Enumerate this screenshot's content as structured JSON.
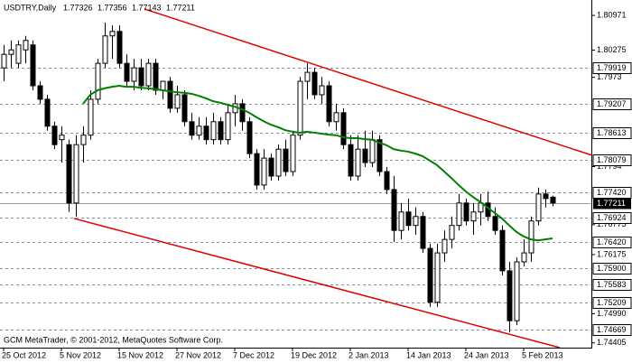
{
  "chart_data": {
    "type": "candlestick",
    "title": "USDTRY,Daily",
    "footer": "GCM MetaTrader, © 2001-2012, MetaQuotes Software Corp.",
    "categories": [
      "25 Oct 2012",
      null,
      null,
      null,
      null,
      null,
      null,
      null,
      "5 Nov 2012",
      null,
      null,
      null,
      null,
      null,
      null,
      null,
      "15 Nov 2012",
      null,
      null,
      null,
      null,
      null,
      null,
      null,
      "27 Nov 2012",
      null,
      null,
      null,
      null,
      null,
      null,
      null,
      "7 Dec 2012",
      null,
      null,
      null,
      null,
      null,
      null,
      null,
      "19 Dec 2012",
      null,
      null,
      null,
      null,
      null,
      null,
      null,
      "2 Jan 2013",
      null,
      null,
      null,
      null,
      null,
      null,
      null,
      "14 Jan 2013",
      null,
      null,
      null,
      null,
      null,
      null,
      null,
      "24 Jan 2013",
      null,
      null,
      null,
      null,
      null,
      null,
      null,
      "5 Feb 2013",
      null,
      null,
      null,
      null
    ],
    "open": [
      1.7992,
      1.8019,
      1.8001,
      1.8028,
      1.8038,
      1.7956,
      1.7929,
      1.7875,
      1.7848,
      1.7838,
      1.7721,
      1.7838,
      1.7857,
      1.7929,
      1.8001,
      1.8056,
      1.8065,
      1.8001,
      1.7965,
      1.7992,
      1.7956,
      1.8001,
      1.7947,
      1.7965,
      1.7911,
      1.7938,
      1.7884,
      1.7857,
      1.7875,
      1.7848,
      1.7884,
      1.7848,
      1.7902,
      1.792,
      1.7884,
      1.782,
      1.7757,
      1.7811,
      1.7775,
      1.7829,
      1.7784,
      1.7857,
      1.7965,
      1.7983,
      1.7938,
      1.7956,
      1.7884,
      1.7902,
      1.7838,
      1.7775,
      1.7829,
      1.7802,
      1.7848,
      1.7784,
      1.7748,
      1.7666,
      1.7703,
      1.7676,
      1.7694,
      1.763,
      1.7522,
      1.7621,
      1.7648,
      1.7676,
      1.7721,
      1.7685,
      1.7703,
      1.7721,
      1.7694,
      1.7666,
      1.7585,
      1.7485,
      1.7603,
      1.7621,
      1.7685,
      1.7739,
      1.77326
    ],
    "high": [
      1.8038,
      1.8047,
      1.8047,
      1.8056,
      1.8047,
      1.7965,
      1.7938,
      1.7884,
      1.7875,
      1.7848,
      1.7857,
      1.7875,
      1.7947,
      1.801,
      1.8083,
      1.8077,
      1.8077,
      1.8019,
      1.801,
      1.801,
      1.801,
      1.801,
      1.7965,
      1.7974,
      1.7956,
      1.7947,
      1.7902,
      1.7893,
      1.7893,
      1.7902,
      1.7893,
      1.792,
      1.7938,
      1.7929,
      1.7893,
      1.7829,
      1.7829,
      1.782,
      1.7838,
      1.7848,
      1.7866,
      1.7974,
      1.8001,
      1.7992,
      1.7974,
      1.7965,
      1.792,
      1.7911,
      1.7857,
      1.7857,
      1.7866,
      1.7866,
      1.7857,
      1.7793,
      1.7775,
      1.7721,
      1.773,
      1.7712,
      1.7703,
      1.7639,
      1.7639,
      1.7666,
      1.7694,
      1.7739,
      1.773,
      1.7721,
      1.7739,
      1.7744,
      1.7712,
      1.7676,
      1.7603,
      1.7612,
      1.7648,
      1.7694,
      1.7752,
      1.7748,
      1.77356
    ],
    "low": [
      1.7965,
      1.7992,
      1.7992,
      1.8001,
      1.7947,
      1.792,
      1.7866,
      1.7829,
      1.7802,
      1.7703,
      1.7694,
      1.7802,
      1.7848,
      1.792,
      1.7992,
      1.801,
      1.7992,
      1.7956,
      1.7947,
      1.7947,
      1.7947,
      1.7938,
      1.7929,
      1.7902,
      1.7902,
      1.7875,
      1.7848,
      1.7848,
      1.7838,
      1.7838,
      1.7838,
      1.7838,
      1.7875,
      1.7866,
      1.7811,
      1.7748,
      1.7748,
      1.7766,
      1.7766,
      1.7775,
      1.7775,
      1.7848,
      1.7929,
      1.7929,
      1.792,
      1.7875,
      1.7866,
      1.7829,
      1.7766,
      1.7766,
      1.7793,
      1.7793,
      1.7775,
      1.7739,
      1.7643,
      1.7648,
      1.7666,
      1.7657,
      1.7621,
      1.7513,
      1.7513,
      1.7603,
      1.763,
      1.7666,
      1.7676,
      1.7657,
      1.7676,
      1.7685,
      1.7657,
      1.7576,
      1.7462,
      1.7476,
      1.7594,
      1.7603,
      1.7676,
      1.7712,
      1.77143
    ],
    "close": [
      1.8019,
      1.8028,
      1.8038,
      1.8047,
      1.7956,
      1.7929,
      1.7875,
      1.7838,
      1.7857,
      1.7721,
      1.7838,
      1.7857,
      1.7929,
      1.8001,
      1.8056,
      1.8065,
      1.8001,
      1.7965,
      1.7992,
      1.7956,
      1.8001,
      1.7947,
      1.7965,
      1.7911,
      1.7938,
      1.7884,
      1.7857,
      1.7875,
      1.7848,
      1.7884,
      1.7848,
      1.7902,
      1.792,
      1.7884,
      1.782,
      1.7757,
      1.7811,
      1.7775,
      1.7829,
      1.7784,
      1.7857,
      1.7965,
      1.7983,
      1.7938,
      1.7956,
      1.7884,
      1.7902,
      1.7838,
      1.7775,
      1.7829,
      1.7802,
      1.7848,
      1.7784,
      1.7748,
      1.7666,
      1.7703,
      1.7676,
      1.7694,
      1.763,
      1.7522,
      1.7621,
      1.7648,
      1.7676,
      1.7721,
      1.7685,
      1.7703,
      1.7721,
      1.7694,
      1.7666,
      1.7585,
      1.7485,
      1.7603,
      1.7621,
      1.7685,
      1.7739,
      1.773,
      1.77211
    ],
    "up_color": "#ffffff",
    "down_color": "#000000",
    "wick_color": "#000000",
    "ma": {
      "color": "#008000",
      "values": [
        null,
        null,
        null,
        null,
        null,
        null,
        null,
        null,
        null,
        null,
        null,
        1.792,
        1.7938,
        1.7947,
        1.7951,
        1.7954,
        1.7956,
        1.7954,
        1.7954,
        1.7952,
        1.7951,
        1.7949,
        1.7947,
        1.7945,
        1.7943,
        1.7942,
        1.794,
        1.7936,
        1.7931,
        1.7925,
        1.7922,
        1.7918,
        1.7914,
        1.7909,
        1.7902,
        1.7893,
        1.7885,
        1.7878,
        1.7873,
        1.7867,
        1.7864,
        1.7862,
        1.7864,
        1.7862,
        1.786,
        1.7858,
        1.7857,
        1.7853,
        1.7851,
        1.7851,
        1.7849,
        1.7848,
        1.7842,
        1.7837,
        1.7829,
        1.7826,
        1.7824,
        1.782,
        1.7815,
        1.7806,
        1.7797,
        1.7784,
        1.7771,
        1.7757,
        1.7744,
        1.7733,
        1.7723,
        1.7712,
        1.7701,
        1.769,
        1.7676,
        1.7663,
        1.7654,
        1.7648,
        1.7646,
        1.7648,
        1.765
      ]
    },
    "trendlines": [
      {
        "color": "#e00000",
        "x": [
          19.5,
          81.4
        ],
        "y": [
          1.811,
          1.7817
        ]
      },
      {
        "color": "#e00000",
        "x": [
          9.75,
          77
        ],
        "y": [
          1.769,
          1.7431
        ]
      }
    ],
    "levels": [
      1.79919,
      1.79207,
      1.78613,
      1.78079,
      {
        "value": 1.7742,
        "label": "1.77420"
      },
      1.76924,
      {
        "value": 1.7642,
        "label": "1.76420"
      },
      {
        "value": 1.759,
        "label": "1.75900"
      },
      1.75583,
      1.75209,
      1.74669
    ],
    "level_color": "#7f8fa8",
    "ylim": [
      1.7431,
      1.8128
    ],
    "yticks": [
      1.80971,
      1.80275,
      1.7973,
      1.7794,
      1.76775,
      1.76175,
      {
        "value": 1.7499,
        "label": "1.74990"
      },
      1.74405
    ]
  }
}
